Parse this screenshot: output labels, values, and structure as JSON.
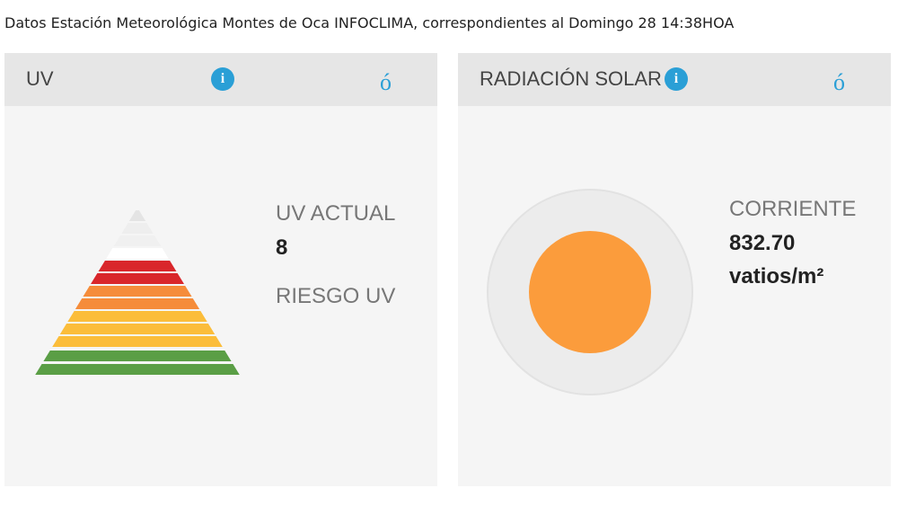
{
  "header": {
    "title": "Datos Estación Meteorológica Montes de Oca INFOCLIMA, correspondientes al Domingo 28 14:38HOA"
  },
  "panels": [
    {
      "title": "UV",
      "info_icon": "i",
      "toggle_icon": "ó",
      "current_label": "UV ACTUAL",
      "current_value": "8",
      "risk_label": "RIESGO UV"
    },
    {
      "title": "RADIACIÓN SOLAR",
      "info_icon": "i",
      "toggle_icon": "ó",
      "current_label": "CORRIENTE",
      "current_value": "832.70",
      "unit": "vatios/m²"
    }
  ]
}
